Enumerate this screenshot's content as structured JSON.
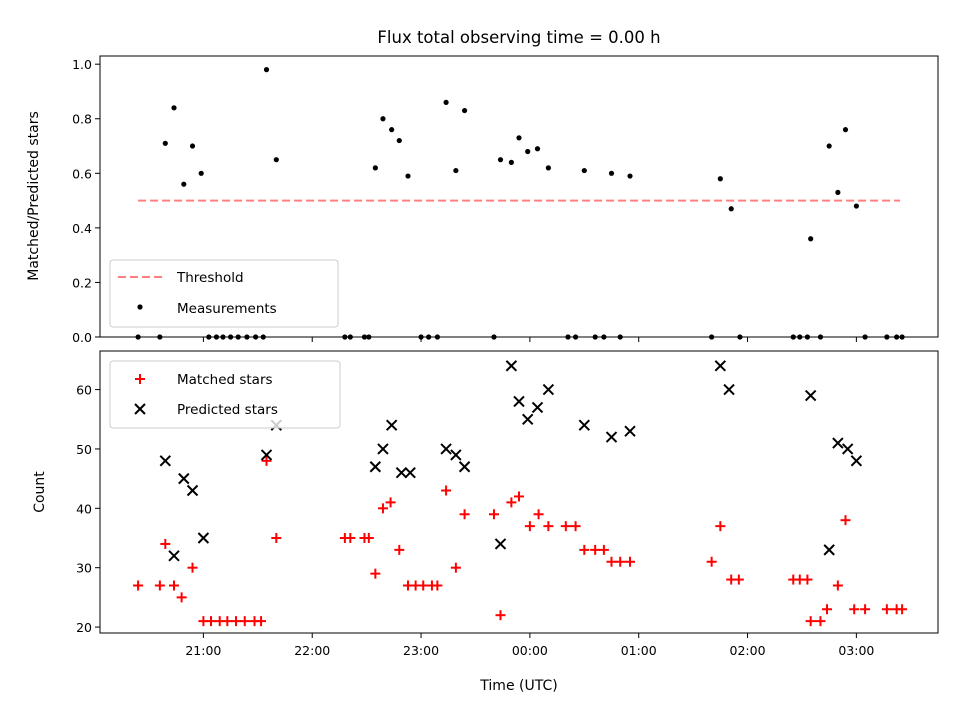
{
  "title": "Flux total observing time = 0.00 h",
  "colors": {
    "threshold": "#ff7f7f",
    "measurement": "#000000",
    "matched": "#ff0000",
    "predicted": "#000000"
  },
  "chart_data": [
    {
      "type": "scatter",
      "ylabel": "Matched/Predicted stars",
      "xlabel": "",
      "x_unit": "hours relative to 00:00 UTC",
      "xlim": [
        -3.95,
        3.75
      ],
      "ylim": [
        0.0,
        1.03
      ],
      "yticks": [
        0.0,
        0.2,
        0.4,
        0.6,
        0.8,
        1.0
      ],
      "legend": {
        "position": "lower-left",
        "entries": [
          "Threshold",
          "Measurements"
        ]
      },
      "threshold": {
        "name": "Threshold",
        "style": "dashed",
        "value": 0.5,
        "x_range": [
          -3.6,
          3.4
        ]
      },
      "series": [
        {
          "name": "Measurements",
          "marker": "dot",
          "points": [
            [
              -3.6,
              0.0
            ],
            [
              -3.4,
              0.0
            ],
            [
              -3.35,
              0.71
            ],
            [
              -3.27,
              0.84
            ],
            [
              -3.18,
              0.56
            ],
            [
              -3.1,
              0.7
            ],
            [
              -3.02,
              0.6
            ],
            [
              -2.95,
              0.0
            ],
            [
              -2.88,
              0.0
            ],
            [
              -2.82,
              0.0
            ],
            [
              -2.75,
              0.0
            ],
            [
              -2.68,
              0.0
            ],
            [
              -2.6,
              0.0
            ],
            [
              -2.52,
              0.0
            ],
            [
              -2.45,
              0.0
            ],
            [
              -2.42,
              0.98
            ],
            [
              -2.33,
              0.65
            ],
            [
              -1.7,
              0.0
            ],
            [
              -1.65,
              0.0
            ],
            [
              -1.52,
              0.0
            ],
            [
              -1.48,
              0.0
            ],
            [
              -1.42,
              0.62
            ],
            [
              -1.35,
              0.8
            ],
            [
              -1.27,
              0.76
            ],
            [
              -1.2,
              0.72
            ],
            [
              -1.12,
              0.59
            ],
            [
              -1.0,
              0.0
            ],
            [
              -0.93,
              0.0
            ],
            [
              -0.85,
              0.0
            ],
            [
              -0.77,
              0.86
            ],
            [
              -0.68,
              0.61
            ],
            [
              -0.6,
              0.83
            ],
            [
              -0.33,
              0.0
            ],
            [
              -0.27,
              0.65
            ],
            [
              -0.17,
              0.64
            ],
            [
              -0.1,
              0.73
            ],
            [
              -0.02,
              0.68
            ],
            [
              0.07,
              0.69
            ],
            [
              0.17,
              0.62
            ],
            [
              0.35,
              0.0
            ],
            [
              0.42,
              0.0
            ],
            [
              0.5,
              0.61
            ],
            [
              0.6,
              0.0
            ],
            [
              0.68,
              0.0
            ],
            [
              0.75,
              0.6
            ],
            [
              0.83,
              0.0
            ],
            [
              0.92,
              0.59
            ],
            [
              1.67,
              0.0
            ],
            [
              1.75,
              0.58
            ],
            [
              1.85,
              0.47
            ],
            [
              1.93,
              0.0
            ],
            [
              2.42,
              0.0
            ],
            [
              2.48,
              0.0
            ],
            [
              2.55,
              0.0
            ],
            [
              2.58,
              0.36
            ],
            [
              2.67,
              0.0
            ],
            [
              2.75,
              0.7
            ],
            [
              2.83,
              0.53
            ],
            [
              2.9,
              0.76
            ],
            [
              3.0,
              0.48
            ],
            [
              3.08,
              0.0
            ],
            [
              3.28,
              0.0
            ],
            [
              3.37,
              0.0
            ],
            [
              3.42,
              0.0
            ]
          ]
        }
      ]
    },
    {
      "type": "scatter",
      "ylabel": "Count",
      "xlabel": "Time (UTC)",
      "x_unit": "hours relative to 00:00 UTC",
      "xlim": [
        -3.95,
        3.75
      ],
      "ylim": [
        19,
        66.5
      ],
      "yticks": [
        20,
        30,
        40,
        50,
        60
      ],
      "xticks": [
        {
          "value": -3,
          "label": "21:00"
        },
        {
          "value": -2,
          "label": "22:00"
        },
        {
          "value": -1,
          "label": "23:00"
        },
        {
          "value": 0,
          "label": "00:00"
        },
        {
          "value": 1,
          "label": "01:00"
        },
        {
          "value": 2,
          "label": "02:00"
        },
        {
          "value": 3,
          "label": "03:00"
        }
      ],
      "legend": {
        "position": "upper-left",
        "entries": [
          "Matched stars",
          "Predicted stars"
        ]
      },
      "series": [
        {
          "name": "Matched stars",
          "marker": "plus",
          "points": [
            [
              -3.6,
              27
            ],
            [
              -3.4,
              27
            ],
            [
              -3.35,
              34
            ],
            [
              -3.27,
              27
            ],
            [
              -3.2,
              25
            ],
            [
              -3.1,
              30
            ],
            [
              -3.0,
              21
            ],
            [
              -2.93,
              21
            ],
            [
              -2.85,
              21
            ],
            [
              -2.78,
              21
            ],
            [
              -2.7,
              21
            ],
            [
              -2.62,
              21
            ],
            [
              -2.53,
              21
            ],
            [
              -2.47,
              21
            ],
            [
              -2.42,
              48
            ],
            [
              -2.33,
              35
            ],
            [
              -1.7,
              35
            ],
            [
              -1.65,
              35
            ],
            [
              -1.52,
              35
            ],
            [
              -1.48,
              35
            ],
            [
              -1.42,
              29
            ],
            [
              -1.35,
              40
            ],
            [
              -1.28,
              41
            ],
            [
              -1.2,
              33
            ],
            [
              -1.12,
              27
            ],
            [
              -1.05,
              27
            ],
            [
              -0.98,
              27
            ],
            [
              -0.9,
              27
            ],
            [
              -0.85,
              27
            ],
            [
              -0.77,
              43
            ],
            [
              -0.68,
              30
            ],
            [
              -0.6,
              39
            ],
            [
              -0.33,
              39
            ],
            [
              -0.27,
              22
            ],
            [
              -0.17,
              41
            ],
            [
              -0.1,
              42
            ],
            [
              0.0,
              37
            ],
            [
              0.08,
              39
            ],
            [
              0.17,
              37
            ],
            [
              0.33,
              37
            ],
            [
              0.42,
              37
            ],
            [
              0.5,
              33
            ],
            [
              0.6,
              33
            ],
            [
              0.68,
              33
            ],
            [
              0.75,
              31
            ],
            [
              0.83,
              31
            ],
            [
              0.92,
              31
            ],
            [
              1.67,
              31
            ],
            [
              1.75,
              37
            ],
            [
              1.85,
              28
            ],
            [
              1.92,
              28
            ],
            [
              2.42,
              28
            ],
            [
              2.48,
              28
            ],
            [
              2.55,
              28
            ],
            [
              2.58,
              21
            ],
            [
              2.67,
              21
            ],
            [
              2.73,
              23
            ],
            [
              2.83,
              27
            ],
            [
              2.9,
              38
            ],
            [
              2.98,
              23
            ],
            [
              3.08,
              23
            ],
            [
              3.28,
              23
            ],
            [
              3.37,
              23
            ],
            [
              3.42,
              23
            ]
          ]
        },
        {
          "name": "Predicted stars",
          "marker": "x",
          "points": [
            [
              -3.35,
              48
            ],
            [
              -3.27,
              32
            ],
            [
              -3.18,
              45
            ],
            [
              -3.1,
              43
            ],
            [
              -3.0,
              35
            ],
            [
              -2.42,
              49
            ],
            [
              -2.33,
              54
            ],
            [
              -1.42,
              47
            ],
            [
              -1.35,
              50
            ],
            [
              -1.27,
              54
            ],
            [
              -1.18,
              46
            ],
            [
              -1.1,
              46
            ],
            [
              -0.77,
              50
            ],
            [
              -0.68,
              49
            ],
            [
              -0.6,
              47
            ],
            [
              -0.27,
              34
            ],
            [
              -0.17,
              64
            ],
            [
              -0.1,
              58
            ],
            [
              -0.02,
              55
            ],
            [
              0.07,
              57
            ],
            [
              0.17,
              60
            ],
            [
              0.5,
              54
            ],
            [
              0.75,
              52
            ],
            [
              0.92,
              53
            ],
            [
              1.75,
              64
            ],
            [
              1.83,
              60
            ],
            [
              2.58,
              59
            ],
            [
              2.75,
              33
            ],
            [
              2.83,
              51
            ],
            [
              2.92,
              50
            ],
            [
              3.0,
              48
            ]
          ]
        }
      ]
    }
  ]
}
